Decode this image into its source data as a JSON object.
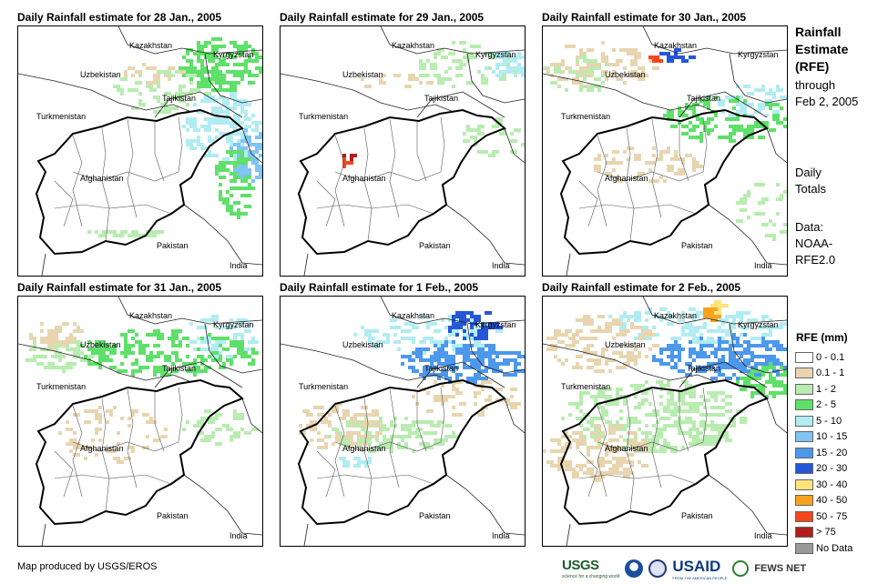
{
  "panels": [
    {
      "title": "Daily Rainfall estimate for 28 Jan., 2005"
    },
    {
      "title": "Daily Rainfall estimate for 29 Jan., 2005"
    },
    {
      "title": "Daily Rainfall estimate for 30 Jan., 2005"
    },
    {
      "title": "Daily Rainfall estimate for 31 Jan., 2005"
    },
    {
      "title": "Daily Rainfall estimate for 1 Feb., 2005"
    },
    {
      "title": "Daily Rainfall estimate for 2 Feb., 2005"
    }
  ],
  "place_labels": {
    "kazakhstan": "Kazakhstan",
    "kyrgyzstan": "Kyrgyzstan",
    "uzbekistan": "Uzbekistan",
    "tajikistan": "Tajikistan",
    "turkmenistan": "Turkmenistan",
    "afghanistan": "Afghanistan",
    "pakistan": "Pakistan",
    "india": "India"
  },
  "sidebar": {
    "title_line1": "Rainfall",
    "title_line2": "Estimate",
    "title_line3": "(RFE)",
    "through_line1": "through",
    "through_line2": "Feb 2, 2005",
    "daily_line1": "Daily",
    "daily_line2": "Totals",
    "data_line1": "Data:",
    "data_line2": "NOAA-",
    "data_line3": "RFE2.0"
  },
  "legend": {
    "title": "RFE (mm)",
    "classes": [
      {
        "label": "0 - 0.1",
        "color": "#ffffff"
      },
      {
        "label": "0.1 - 1",
        "color": "#e8d5b0"
      },
      {
        "label": "1 - 2",
        "color": "#b8ecb0"
      },
      {
        "label": "2 - 5",
        "color": "#5fe06a"
      },
      {
        "label": "5 - 10",
        "color": "#b0ecf2"
      },
      {
        "label": "10 - 15",
        "color": "#7fc4f2"
      },
      {
        "label": "15 - 20",
        "color": "#4c98ec"
      },
      {
        "label": "20 - 30",
        "color": "#2556d8"
      },
      {
        "label": "30 - 40",
        "color": "#fce37a"
      },
      {
        "label": "40 - 50",
        "color": "#f9a21e"
      },
      {
        "label": "50 - 75",
        "color": "#f2461c"
      },
      {
        "label": "> 75",
        "color": "#b01e1e"
      },
      {
        "label": "No Data",
        "color": "#999999"
      }
    ]
  },
  "credit": "Map produced by USGS/EROS",
  "logos": {
    "usgs": "USGS",
    "usgs_tagline": "science for a changing world",
    "usaid": "USAID",
    "usaid_tagline": "FROM THE AMERICAN PEOPLE",
    "fews": "FEWS NET"
  }
}
